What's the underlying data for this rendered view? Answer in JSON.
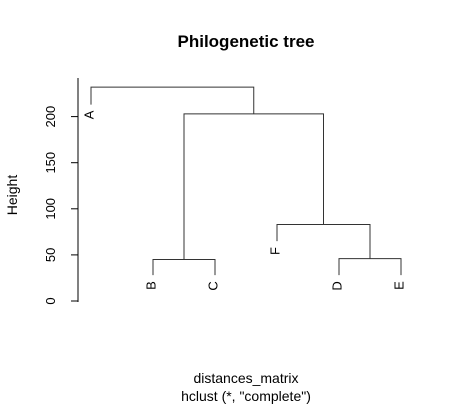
{
  "chart_data": {
    "type": "dendrogram",
    "title": "Philogenetic tree",
    "ylabel": "Height",
    "xlabel": "distances_matrix",
    "sublabel": "hclust (*, \"complete\")",
    "ylim": [
      0,
      230
    ],
    "yticks": [
      0,
      50,
      100,
      150,
      200
    ],
    "leaves": [
      "A",
      "B",
      "C",
      "F",
      "D",
      "E"
    ],
    "merges": [
      {
        "left": "B",
        "right": "C",
        "height": 45
      },
      {
        "left": "D",
        "right": "E",
        "height": 46
      },
      {
        "left": "F",
        "right": "DE",
        "height": 83
      },
      {
        "left": "BC",
        "right": "FDE",
        "height": 203
      },
      {
        "left": "A",
        "right": "BCFDE",
        "height": 232
      }
    ],
    "leaf_heights": {
      "A": 213,
      "B": 28,
      "C": 28,
      "F": 65,
      "D": 28,
      "E": 28
    },
    "colors": {
      "line": "#333333",
      "text": "#000000"
    }
  }
}
